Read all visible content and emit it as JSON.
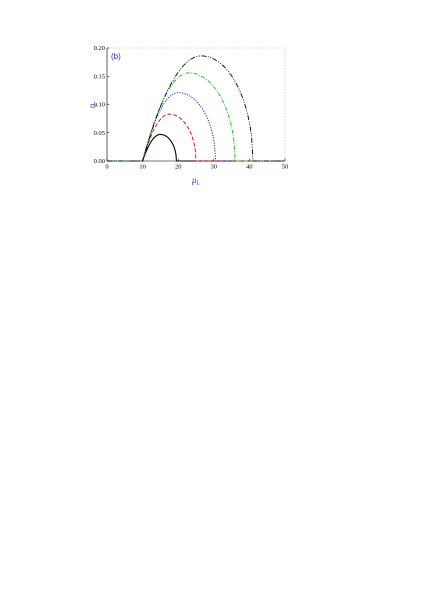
{
  "chart_data": {
    "type": "line",
    "panel_label": "(b)",
    "title": "",
    "xlabel": "μ",
    "xlabel_sub": "L",
    "ylabel": "η",
    "xlim": [
      0,
      50
    ],
    "ylim": [
      0,
      0.2
    ],
    "xticks": [
      "0",
      "10",
      "20",
      "30",
      "40",
      "50"
    ],
    "yticks": [
      "0.00",
      "0.05",
      "0.10",
      "0.15",
      "0.20"
    ],
    "x_tick_values": [
      0,
      10,
      20,
      30,
      40,
      50
    ],
    "y_tick_values": [
      0,
      0.05,
      0.1,
      0.15,
      0.2
    ],
    "grid": false,
    "series": [
      {
        "color": "#000000",
        "style": "solid",
        "onset": 10,
        "peak_x": 15,
        "peak_y": 0.047,
        "end": 19.5
      },
      {
        "color": "#e00000",
        "style": "dashed",
        "onset": 10,
        "peak_x": 17.5,
        "peak_y": 0.083,
        "end": 25
      },
      {
        "color": "#0000d0",
        "style": "dotted",
        "onset": 10,
        "peak_x": 20,
        "peak_y": 0.121,
        "end": 30.5
      },
      {
        "color": "#00c800",
        "style": "dashdot",
        "onset": 10,
        "peak_x": 23,
        "peak_y": 0.156,
        "end": 36
      },
      {
        "color": "#000000",
        "style": "dashdotdot",
        "onset": 10,
        "peak_x": 26.5,
        "peak_y": 0.186,
        "end": 41
      }
    ]
  }
}
